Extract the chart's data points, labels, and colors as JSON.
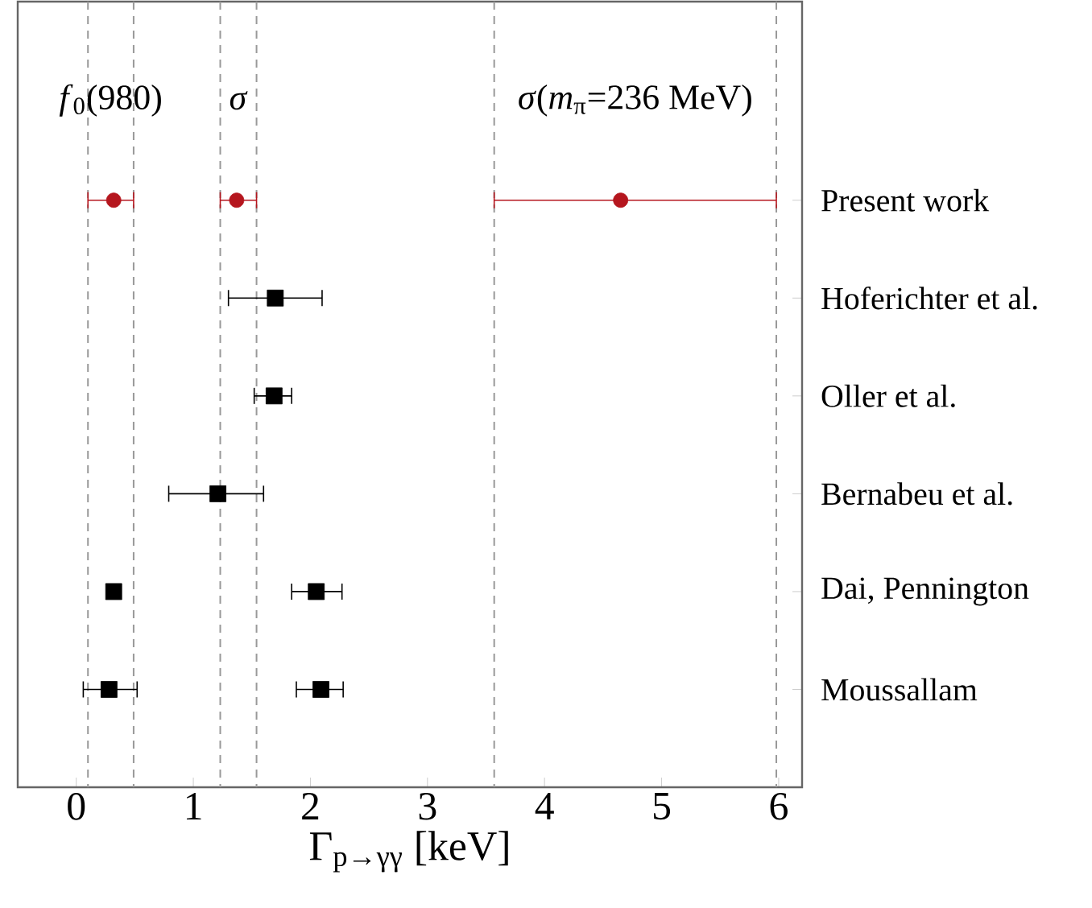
{
  "chart_data": {
    "type": "scatter",
    "orientation": "horizontal",
    "categories": [
      "Present work",
      "Hoferichter et al.",
      "Oller et al.",
      "Bernabeu et al.",
      "Dai, Pennington",
      "Moussallam"
    ],
    "series": [
      {
        "color": "#b5161e",
        "marker": "circle",
        "values": [
          0.32,
          null,
          null,
          null,
          null,
          null
        ],
        "errors": [
          [
            0.1,
            0.49
          ],
          null,
          null,
          null,
          null,
          null
        ]
      },
      {
        "color": "#b5161e",
        "marker": "circle",
        "values": [
          1.37,
          null,
          null,
          null,
          null,
          null
        ],
        "errors": [
          [
            1.23,
            1.54
          ],
          null,
          null,
          null,
          null,
          null
        ]
      },
      {
        "color": "#b5161e",
        "marker": "circle",
        "values": [
          4.65,
          null,
          null,
          null,
          null,
          null
        ],
        "errors": [
          [
            3.57,
            5.98
          ],
          null,
          null,
          null,
          null,
          null
        ]
      },
      {
        "color": "#000000",
        "marker": "square",
        "values": [
          null,
          1.7,
          1.69,
          1.21,
          0.32,
          0.28
        ],
        "errors": [
          null,
          [
            1.3,
            2.1
          ],
          [
            1.52,
            1.84
          ],
          [
            0.79,
            1.6
          ],
          null,
          [
            0.06,
            0.52
          ]
        ]
      },
      {
        "color": "#000000",
        "marker": "square",
        "values": [
          null,
          null,
          null,
          null,
          2.05,
          2.09
        ],
        "errors": [
          null,
          null,
          null,
          null,
          [
            1.84,
            2.27
          ],
          [
            1.88,
            2.28
          ]
        ]
      }
    ],
    "xlim": [
      -0.5,
      6.2
    ],
    "xticks": [
      0,
      1,
      2,
      3,
      4,
      5,
      6
    ],
    "xlabel": "Γ$_{p→γγ}$ [keV]",
    "ref_lines": [
      {
        "axis": "x",
        "value": 0.1,
        "color": "#999999",
        "line_style": "dashed"
      },
      {
        "axis": "x",
        "value": 0.49,
        "color": "#999999",
        "line_style": "dashed"
      },
      {
        "axis": "x",
        "value": 1.23,
        "color": "#999999",
        "line_style": "dashed"
      },
      {
        "axis": "x",
        "value": 1.54,
        "color": "#999999",
        "line_style": "dashed"
      },
      {
        "axis": "x",
        "value": 3.57,
        "color": "#999999",
        "line_style": "dashed"
      },
      {
        "axis": "x",
        "value": 5.98,
        "color": "#999999",
        "line_style": "dashed"
      }
    ],
    "annotations": [
      "*f*$_{0}$(980)",
      "*σ*",
      "*σ*(*m*$_{π}$=236 MeV)"
    ],
    "grid": false
  }
}
